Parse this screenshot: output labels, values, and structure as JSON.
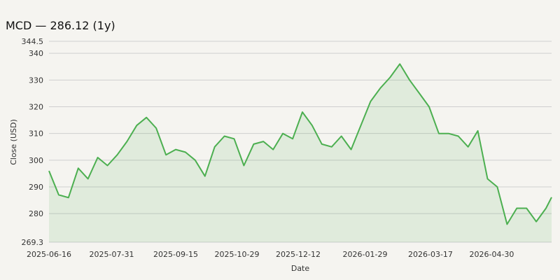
{
  "chart_data": {
    "type": "area",
    "title": "MCD — 286.12 (1y)",
    "xlabel": "Date",
    "ylabel": "Close (USD)",
    "ylim": [
      269.3,
      344.5
    ],
    "yticks": [
      "269.3",
      "280",
      "290",
      "300",
      "310",
      "320",
      "330",
      "340",
      "344.5"
    ],
    "xticks": [
      "2025-06-16",
      "2025-07-31",
      "2025-09-15",
      "2025-10-29",
      "2025-12-12",
      "2026-01-29",
      "2026-03-17",
      "2026-04-30"
    ],
    "x_start": "2025-06-16",
    "x_end": "2026-06-12",
    "grid": "horizontal",
    "colors": {
      "line": "#4caf50",
      "fill": "#4caf50",
      "fill_opacity": 0.12
    },
    "series": [
      {
        "x": [
          "2025-06-16",
          "2025-06-23",
          "2025-06-30",
          "2025-07-07",
          "2025-07-14",
          "2025-07-21",
          "2025-07-28",
          "2025-08-04",
          "2025-08-11",
          "2025-08-18",
          "2025-08-25",
          "2025-09-01",
          "2025-09-08",
          "2025-09-15",
          "2025-09-22",
          "2025-09-29",
          "2025-10-06",
          "2025-10-13",
          "2025-10-20",
          "2025-10-27",
          "2025-11-03",
          "2025-11-10",
          "2025-11-17",
          "2025-11-24",
          "2025-12-01",
          "2025-12-08",
          "2025-12-15",
          "2025-12-22",
          "2025-12-29",
          "2026-01-05",
          "2026-01-12",
          "2026-01-19",
          "2026-01-26",
          "2026-02-02",
          "2026-02-09",
          "2026-02-16",
          "2026-02-23",
          "2026-03-02",
          "2026-03-09",
          "2026-03-16",
          "2026-03-23",
          "2026-03-30",
          "2026-04-06",
          "2026-04-13",
          "2026-04-20",
          "2026-04-27",
          "2026-05-04",
          "2026-05-11",
          "2026-05-18",
          "2026-05-25",
          "2026-06-01",
          "2026-06-08",
          "2026-06-12"
        ],
        "values": [
          296,
          287,
          286,
          297,
          293,
          301,
          298,
          302,
          307,
          313,
          316,
          312,
          302,
          304,
          303,
          300,
          294,
          305,
          309,
          308,
          298,
          306,
          307,
          304,
          310,
          308,
          318,
          313,
          306,
          305,
          309,
          304,
          313,
          322,
          327,
          331,
          336,
          330,
          325,
          320,
          310,
          310,
          309,
          305,
          311,
          293,
          290,
          276,
          282,
          282,
          277,
          282,
          286.12
        ]
      }
    ]
  }
}
